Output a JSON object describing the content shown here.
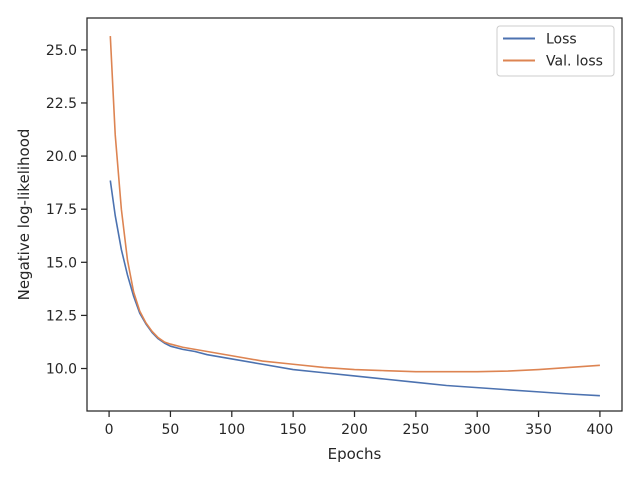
{
  "chart_data": {
    "type": "line",
    "xlabel": "Epochs",
    "ylabel": "Negative log-likelihood",
    "xlim": [
      -18,
      418
    ],
    "ylim": [
      8.0,
      26.5
    ],
    "xticks": [
      0,
      50,
      100,
      150,
      200,
      250,
      300,
      350,
      400
    ],
    "yticks": [
      10.0,
      12.5,
      15.0,
      17.5,
      20.0,
      22.5,
      25.0
    ],
    "xtick_labels": [
      "0",
      "50",
      "100",
      "150",
      "200",
      "250",
      "300",
      "350",
      "400"
    ],
    "ytick_labels": [
      "10.0",
      "12.5",
      "15.0",
      "17.5",
      "20.0",
      "22.5",
      "25.0"
    ],
    "grid": false,
    "legend_position": "top-right",
    "x": [
      1,
      5,
      10,
      15,
      20,
      25,
      30,
      35,
      40,
      45,
      50,
      60,
      70,
      80,
      90,
      100,
      125,
      150,
      175,
      200,
      225,
      250,
      275,
      300,
      325,
      350,
      375,
      400
    ],
    "series": [
      {
        "name": "Loss",
        "color": "#4c72b0",
        "values": [
          18.85,
          17.2,
          15.6,
          14.4,
          13.4,
          12.6,
          12.1,
          11.7,
          11.4,
          11.2,
          11.05,
          10.9,
          10.8,
          10.65,
          10.55,
          10.45,
          10.2,
          9.95,
          9.8,
          9.65,
          9.5,
          9.35,
          9.2,
          9.1,
          9.0,
          8.9,
          8.8,
          8.72
        ]
      },
      {
        "name": "Val. loss",
        "color": "#dd8452",
        "values": [
          25.65,
          21.0,
          17.5,
          15.1,
          13.6,
          12.7,
          12.15,
          11.75,
          11.45,
          11.25,
          11.15,
          11.0,
          10.9,
          10.8,
          10.7,
          10.6,
          10.35,
          10.2,
          10.05,
          9.95,
          9.9,
          9.85,
          9.85,
          9.85,
          9.88,
          9.95,
          10.05,
          10.15
        ]
      }
    ]
  }
}
